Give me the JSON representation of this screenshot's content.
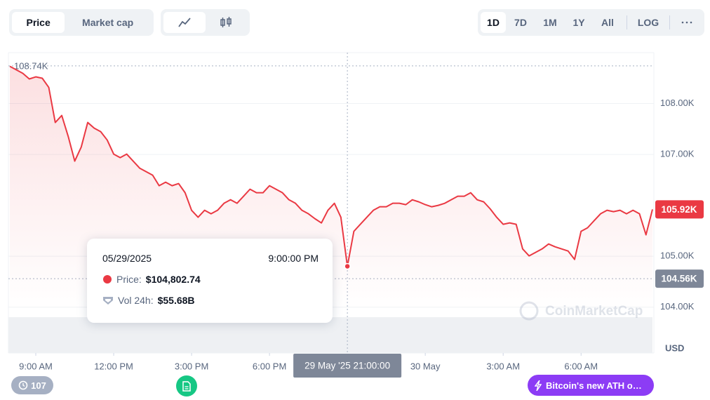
{
  "toolbar": {
    "tabs": [
      "Price",
      "Market cap"
    ],
    "ranges": [
      "1D",
      "7D",
      "1M",
      "1Y",
      "All"
    ],
    "log": "LOG"
  },
  "chart_data": {
    "type": "line",
    "color": "#ea3943",
    "x": [
      "2025-05-29T08:00",
      "2025-05-29T08:15",
      "2025-05-29T08:30",
      "2025-05-29T08:45",
      "2025-05-29T09:00",
      "2025-05-29T09:15",
      "2025-05-29T09:30",
      "2025-05-29T09:45",
      "2025-05-29T10:00",
      "2025-05-29T10:15",
      "2025-05-29T10:30",
      "2025-05-29T10:45",
      "2025-05-29T11:00",
      "2025-05-29T11:15",
      "2025-05-29T11:30",
      "2025-05-29T11:45",
      "2025-05-29T12:00",
      "2025-05-29T12:15",
      "2025-05-29T12:30",
      "2025-05-29T12:45",
      "2025-05-29T13:00",
      "2025-05-29T13:15",
      "2025-05-29T13:30",
      "2025-05-29T13:45",
      "2025-05-29T14:00",
      "2025-05-29T14:15",
      "2025-05-29T14:30",
      "2025-05-29T14:45",
      "2025-05-29T15:00",
      "2025-05-29T15:15",
      "2025-05-29T15:30",
      "2025-05-29T15:45",
      "2025-05-29T16:00",
      "2025-05-29T16:15",
      "2025-05-29T16:30",
      "2025-05-29T16:45",
      "2025-05-29T17:00",
      "2025-05-29T17:15",
      "2025-05-29T17:30",
      "2025-05-29T17:45",
      "2025-05-29T18:00",
      "2025-05-29T18:15",
      "2025-05-29T18:30",
      "2025-05-29T18:45",
      "2025-05-29T19:00",
      "2025-05-29T19:15",
      "2025-05-29T19:30",
      "2025-05-29T19:45",
      "2025-05-29T20:00",
      "2025-05-29T20:15",
      "2025-05-29T20:30",
      "2025-05-29T20:45",
      "2025-05-29T21:00",
      "2025-05-29T21:15",
      "2025-05-29T21:30",
      "2025-05-29T21:45",
      "2025-05-29T22:00",
      "2025-05-29T22:15",
      "2025-05-29T22:30",
      "2025-05-29T22:45",
      "2025-05-29T23:00",
      "2025-05-29T23:15",
      "2025-05-29T23:30",
      "2025-05-29T23:45",
      "2025-05-30T00:00",
      "2025-05-30T00:15",
      "2025-05-30T00:30",
      "2025-05-30T00:45",
      "2025-05-30T01:00",
      "2025-05-30T01:15",
      "2025-05-30T01:30",
      "2025-05-30T01:45",
      "2025-05-30T02:00",
      "2025-05-30T02:15",
      "2025-05-30T02:30",
      "2025-05-30T02:45",
      "2025-05-30T03:00",
      "2025-05-30T03:15",
      "2025-05-30T03:30",
      "2025-05-30T03:45",
      "2025-05-30T04:00",
      "2025-05-30T04:15",
      "2025-05-30T04:30",
      "2025-05-30T04:45",
      "2025-05-30T05:00",
      "2025-05-30T05:15",
      "2025-05-30T05:30",
      "2025-05-30T05:45",
      "2025-05-30T06:00",
      "2025-05-30T06:15",
      "2025-05-30T06:30",
      "2025-05-30T06:45",
      "2025-05-30T07:00",
      "2025-05-30T07:15",
      "2025-05-30T07:30",
      "2025-05-30T07:45",
      "2025-05-30T08:00",
      "2025-05-30T08:15",
      "2025-05-30T08:30",
      "2025-05-30T08:45"
    ],
    "values": [
      108731,
      108662,
      108593,
      108483,
      108524,
      108497,
      108317,
      107628,
      107766,
      107352,
      106869,
      107145,
      107628,
      107517,
      107448,
      107283,
      107007,
      106938,
      107007,
      106869,
      106731,
      106662,
      106593,
      106386,
      106455,
      106386,
      106428,
      106248,
      105903,
      105766,
      105903,
      105834,
      105903,
      106041,
      106110,
      106041,
      106179,
      106317,
      106248,
      106248,
      106386,
      106317,
      106248,
      106110,
      106041,
      105903,
      105834,
      105738,
      105655,
      105903,
      106041,
      105766,
      104802.74,
      105490,
      105628,
      105766,
      105903,
      105972,
      105972,
      106041,
      106041,
      106014,
      106110,
      106069,
      106014,
      105972,
      106000,
      106041,
      106110,
      106179,
      106179,
      106248,
      106110,
      106069,
      105931,
      105766,
      105628,
      105655,
      105628,
      105145,
      105007,
      105076,
      105145,
      105241,
      105186,
      105145,
      105103,
      104938,
      105490,
      105559,
      105697,
      105834,
      105903,
      105876,
      105903,
      105834,
      105903,
      105834,
      105421,
      105921
    ],
    "xlim": [
      "2025-05-29T08:00",
      "2025-05-30T08:45"
    ],
    "xticks": [
      {
        "value": "2025-05-29T09:00",
        "label": "9:00 AM"
      },
      {
        "value": "2025-05-29T12:00",
        "label": "12:00 PM"
      },
      {
        "value": "2025-05-29T15:00",
        "label": "3:00 PM"
      },
      {
        "value": "2025-05-29T18:00",
        "label": "6:00 PM"
      },
      {
        "value": "2025-05-30T00:00",
        "label": "30 May"
      },
      {
        "value": "2025-05-30T03:00",
        "label": "3:00 AM"
      },
      {
        "value": "2025-05-30T06:00",
        "label": "6:00 AM"
      }
    ],
    "ylim": [
      103100,
      109000
    ],
    "yticks": [
      {
        "value": 104000,
        "label": "104.00K"
      },
      {
        "value": 105000,
        "label": "105.00K"
      },
      {
        "value": 107000,
        "label": "107.00K"
      },
      {
        "value": 108000,
        "label": "108.00K"
      }
    ],
    "y_unit": "USD",
    "grid": true,
    "high": {
      "value": 108740,
      "label": "108.74K"
    },
    "low": {
      "value": 104560,
      "label": "104.56K"
    },
    "last": {
      "value": 105920,
      "label": "105.92K"
    },
    "crosshair": {
      "index": 52,
      "label": "29 May '25 21:00:00"
    },
    "tooltip": {
      "date": "05/29/2025",
      "time": "9:00:00 PM",
      "price_label": "Price:",
      "price": "$104,802.74",
      "volume_label": "Vol 24h:",
      "volume": "$55.68B"
    },
    "watermark": "CoinMarketCap"
  },
  "badges": {
    "history": "107",
    "news": "Bitcoin's new ATH o…"
  }
}
